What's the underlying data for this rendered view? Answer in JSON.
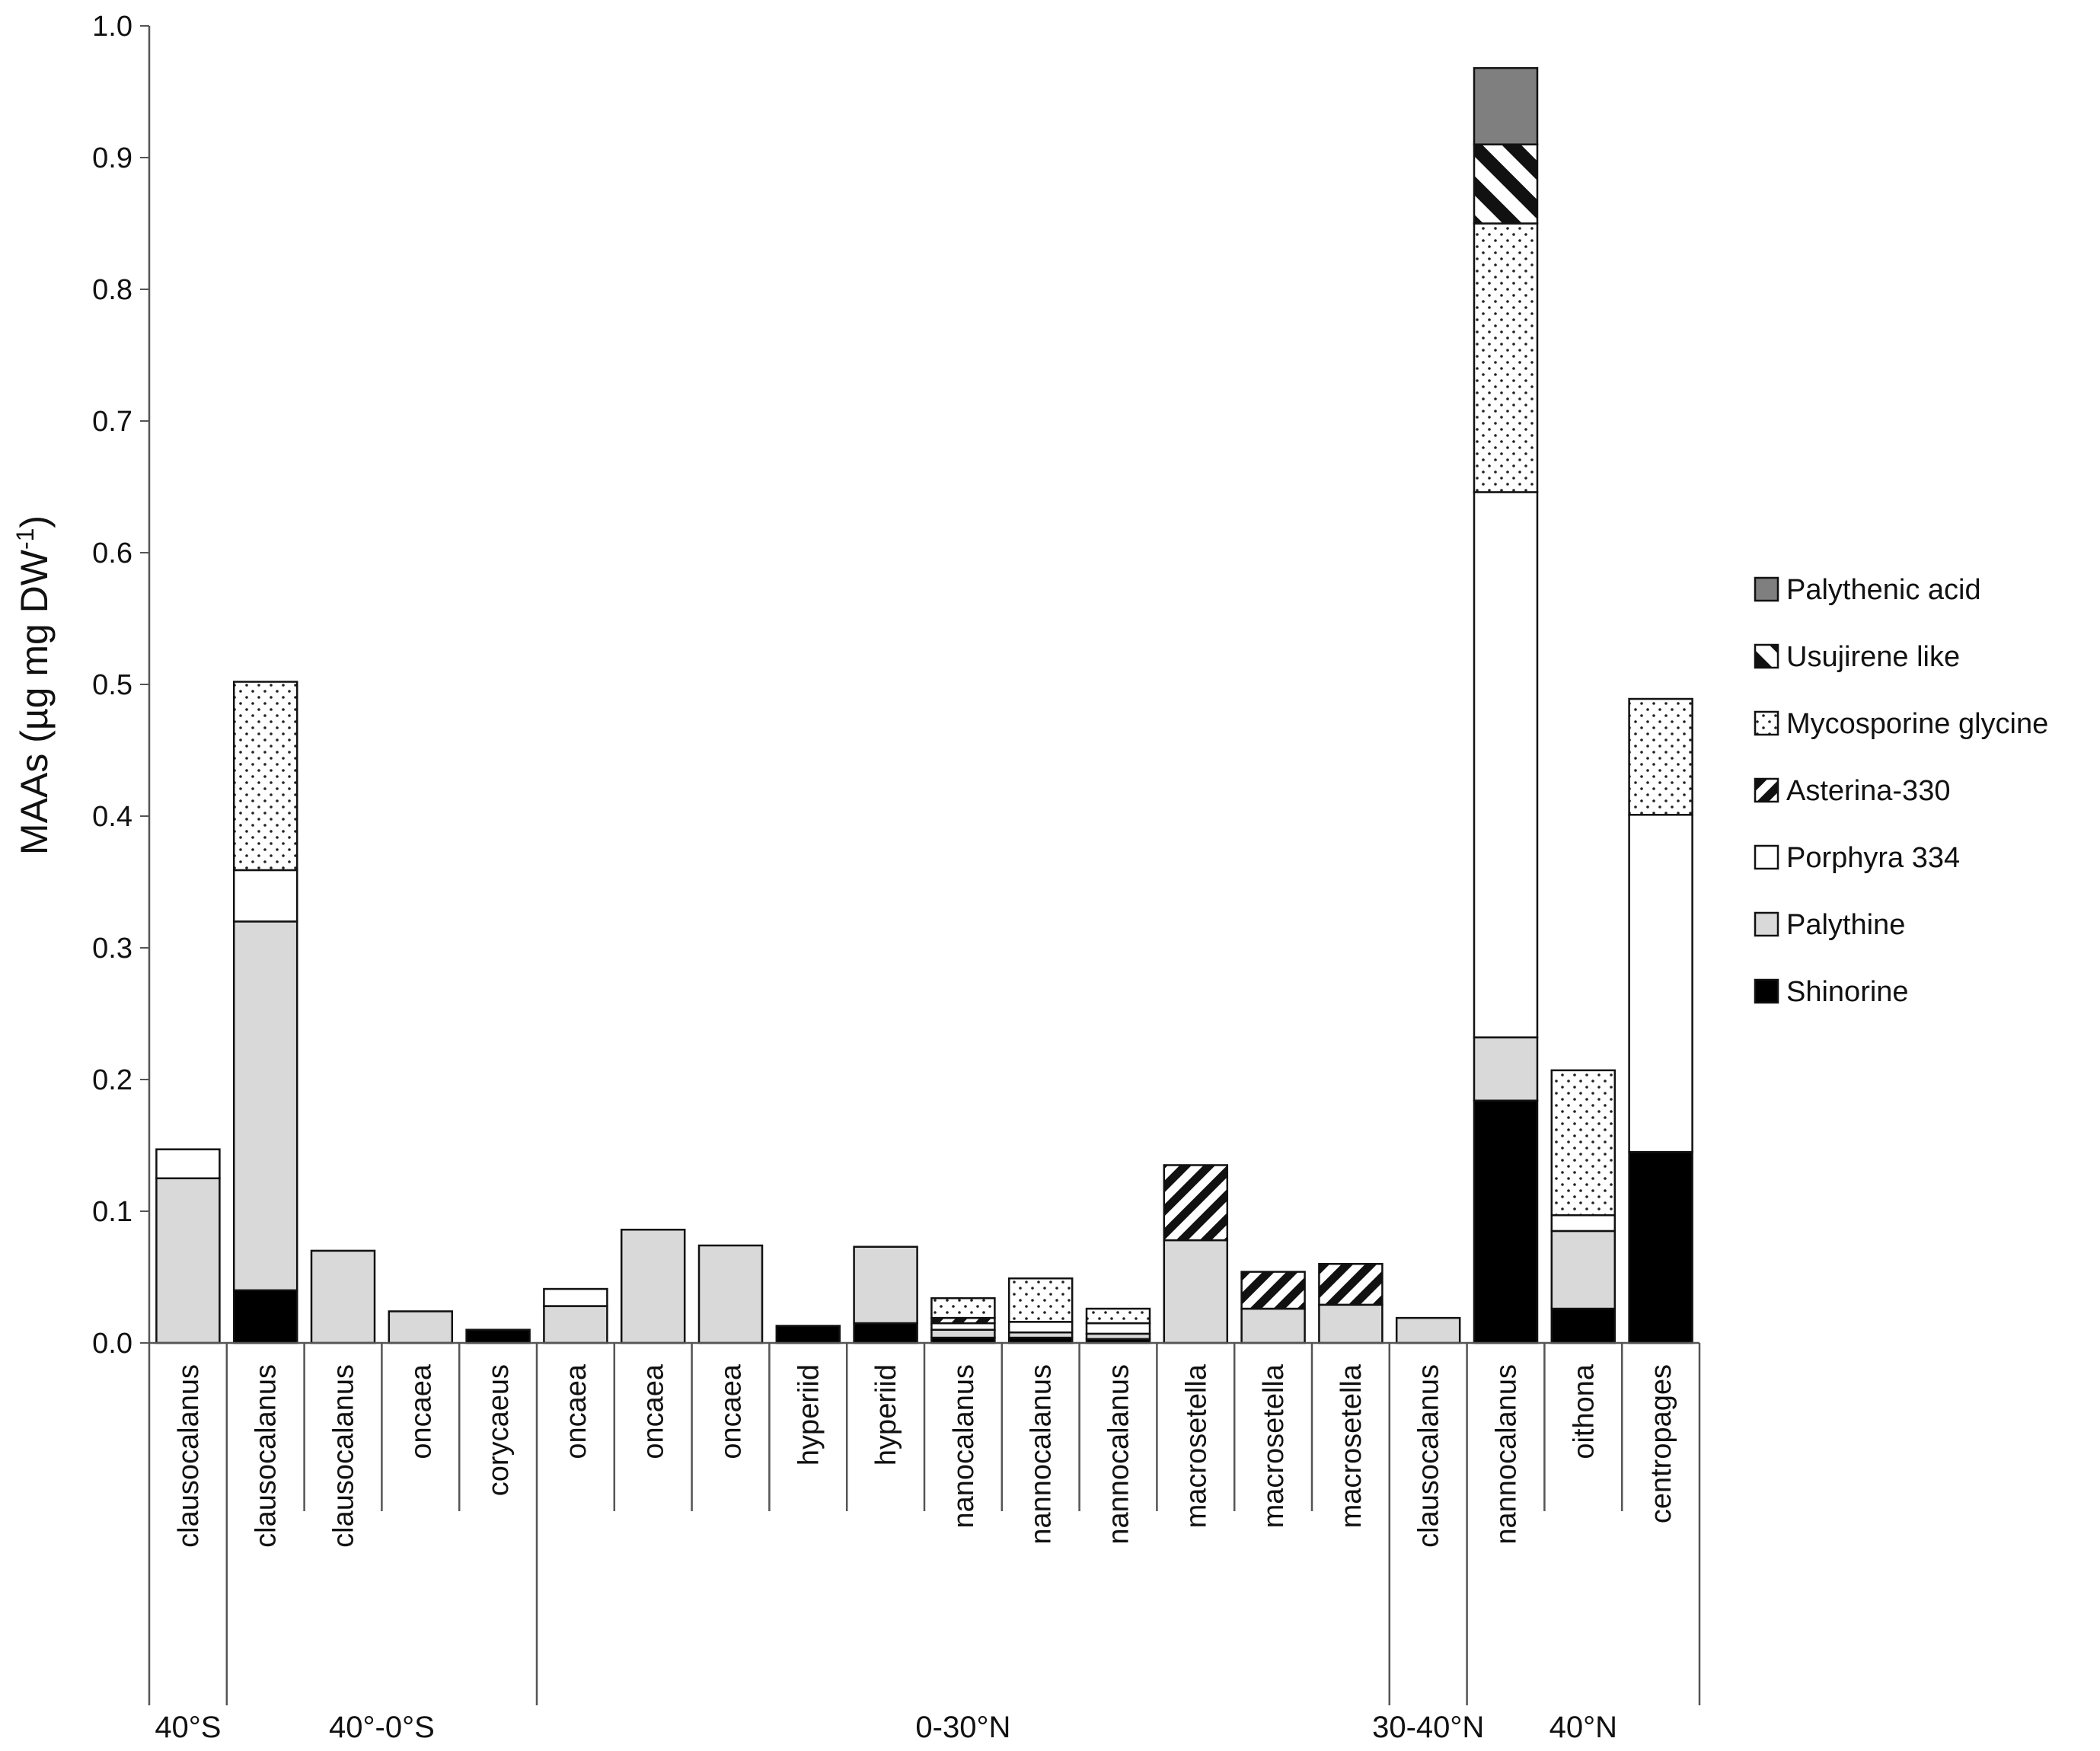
{
  "chart_data": {
    "type": "bar",
    "stacked": true,
    "title": "",
    "ylabel": "MAAs (µg mg DW",
    "ylabel_superscript": "-1",
    "ylabel_suffix": ")",
    "xlabel": "",
    "ylim": [
      0,
      1.0
    ],
    "yticks": [
      "0.0",
      "0.1",
      "0.2",
      "0.3",
      "0.4",
      "0.5",
      "0.6",
      "0.7",
      "0.8",
      "0.9",
      "1.0"
    ],
    "grid": false,
    "legend_position": "right",
    "categories": [
      "clausocalanus",
      "clausocalanus",
      "clausocalanus",
      "oncaea",
      "corycaeus",
      "oncaea",
      "oncaea",
      "oncaea",
      "hyperiid",
      "hyperiid",
      "nanocalanus",
      "nannocalanus",
      "nannocalanus",
      "macrosetella",
      "macrosetella",
      "macrosetella",
      "clausocalanus",
      "nannocalanus",
      "oithona",
      "centropages"
    ],
    "groups": [
      {
        "label": "40°S",
        "start": 0,
        "end": 0
      },
      {
        "label": "40°-0°S",
        "start": 1,
        "end": 4
      },
      {
        "label": "0-30°N",
        "start": 5,
        "end": 15
      },
      {
        "label": "30-40°N",
        "start": 16,
        "end": 16
      },
      {
        "label": "40°N",
        "start": 17,
        "end": 19
      }
    ],
    "series": [
      {
        "name": "Shinorine",
        "pattern": "black",
        "values": [
          0,
          0.04,
          0,
          0,
          0.01,
          0,
          0,
          0,
          0.013,
          0.015,
          0.004,
          0.004,
          0.003,
          0,
          0,
          0,
          0,
          0.184,
          0.026,
          0.145
        ]
      },
      {
        "name": "Palythine",
        "pattern": "lightgray",
        "values": [
          0.125,
          0.28,
          0.07,
          0.024,
          0,
          0.028,
          0.086,
          0.074,
          0,
          0.058,
          0.006,
          0.004,
          0.004,
          0.078,
          0.026,
          0.029,
          0.019,
          0.048,
          0.059,
          0
        ]
      },
      {
        "name": "Porphyra 334",
        "pattern": "white",
        "values": [
          0.022,
          0.039,
          0,
          0,
          0,
          0.013,
          0,
          0,
          0,
          0,
          0.005,
          0.008,
          0.008,
          0,
          0,
          0,
          0,
          0.414,
          0.012,
          0.256
        ]
      },
      {
        "name": "Asterina-330",
        "pattern": "diag-stripes",
        "values": [
          0,
          0,
          0,
          0,
          0,
          0,
          0,
          0,
          0,
          0,
          0.004,
          0,
          0,
          0.057,
          0.028,
          0.031,
          0,
          0,
          0,
          0
        ]
      },
      {
        "name": "Mycosporine glycine",
        "pattern": "dots",
        "values": [
          0,
          0.143,
          0,
          0,
          0,
          0,
          0,
          0,
          0,
          0,
          0.015,
          0.033,
          0.011,
          0,
          0,
          0,
          0,
          0.204,
          0.11,
          0.088
        ]
      },
      {
        "name": "Usujirene like",
        "pattern": "bold-diag",
        "values": [
          0,
          0,
          0,
          0,
          0,
          0,
          0,
          0,
          0,
          0,
          0,
          0,
          0,
          0,
          0,
          0,
          0,
          0.06,
          0,
          0
        ]
      },
      {
        "name": "Palythenic acid",
        "pattern": "darkgray",
        "values": [
          0,
          0,
          0,
          0,
          0,
          0,
          0,
          0,
          0,
          0,
          0,
          0,
          0,
          0,
          0,
          0,
          0,
          0.058,
          0,
          0
        ]
      }
    ],
    "legend_order": [
      "Palythenic acid",
      "Usujirene like",
      "Mycosporine glycine",
      "Asterina-330",
      "Porphyra 334",
      "Palythine",
      "Shinorine"
    ]
  }
}
